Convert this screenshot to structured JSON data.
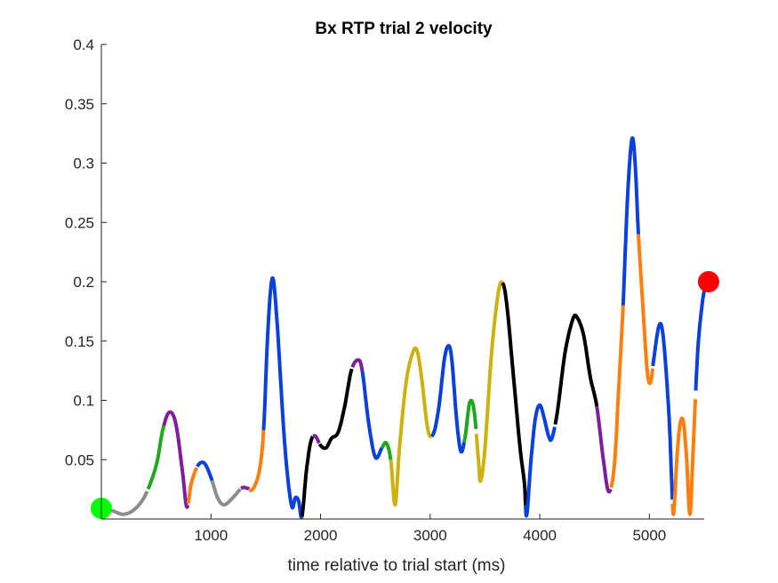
{
  "chart_data": {
    "type": "line",
    "title": "Bx  RTP trial 2 velocity",
    "xlabel": "time relative to trial start (ms)",
    "ylabel": "",
    "xlim": [
      0,
      5500
    ],
    "ylim": [
      0,
      0.4
    ],
    "xticks": [
      1000,
      2000,
      3000,
      4000,
      5000
    ],
    "yticks": [
      0.05,
      0.1,
      0.15,
      0.2,
      0.25,
      0.3,
      0.35,
      0.4
    ],
    "xtick_labels": [
      "1000",
      "2000",
      "3000",
      "4000",
      "5000"
    ],
    "ytick_labels": [
      "0.05",
      "0.1",
      "0.15",
      "0.2",
      "0.25",
      "0.3",
      "0.35",
      "0.4"
    ],
    "grid": false,
    "colors": {
      "gray": "#8c8c8c",
      "green": "#1fa81f",
      "purple": "#7e1e9c",
      "orange": "#ff7f0e",
      "blue": "#0a3fe0",
      "black": "#000000",
      "olive": "#cdb20f",
      "start_marker": "#00ff00",
      "end_marker": "#ff0000"
    },
    "points": [
      [
        0,
        0.009
      ],
      [
        100,
        0.007
      ],
      [
        200,
        0.004
      ],
      [
        300,
        0.008
      ],
      [
        400,
        0.02
      ],
      [
        500,
        0.045
      ],
      [
        560,
        0.075
      ],
      [
        620,
        0.09
      ],
      [
        680,
        0.08
      ],
      [
        740,
        0.04
      ],
      [
        780,
        0.01
      ],
      [
        820,
        0.03
      ],
      [
        880,
        0.045
      ],
      [
        940,
        0.047
      ],
      [
        1000,
        0.035
      ],
      [
        1060,
        0.018
      ],
      [
        1120,
        0.012
      ],
      [
        1200,
        0.018
      ],
      [
        1280,
        0.026
      ],
      [
        1330,
        0.026
      ],
      [
        1380,
        0.025
      ],
      [
        1440,
        0.04
      ],
      [
        1480,
        0.075
      ],
      [
        1520,
        0.16
      ],
      [
        1560,
        0.203
      ],
      [
        1600,
        0.17
      ],
      [
        1660,
        0.08
      ],
      [
        1700,
        0.035
      ],
      [
        1740,
        0.01
      ],
      [
        1770,
        0.018
      ],
      [
        1800,
        0.015
      ],
      [
        1830,
        0.002
      ],
      [
        1870,
        0.04
      ],
      [
        1910,
        0.065
      ],
      [
        1950,
        0.07
      ],
      [
        2000,
        0.062
      ],
      [
        2050,
        0.06
      ],
      [
        2100,
        0.068
      ],
      [
        2160,
        0.073
      ],
      [
        2220,
        0.095
      ],
      [
        2280,
        0.125
      ],
      [
        2340,
        0.134
      ],
      [
        2380,
        0.125
      ],
      [
        2440,
        0.08
      ],
      [
        2500,
        0.052
      ],
      [
        2560,
        0.06
      ],
      [
        2600,
        0.064
      ],
      [
        2640,
        0.05
      ],
      [
        2680,
        0.012
      ],
      [
        2720,
        0.06
      ],
      [
        2780,
        0.115
      ],
      [
        2840,
        0.14
      ],
      [
        2880,
        0.142
      ],
      [
        2920,
        0.12
      ],
      [
        2980,
        0.075
      ],
      [
        3030,
        0.072
      ],
      [
        3080,
        0.095
      ],
      [
        3130,
        0.135
      ],
      [
        3170,
        0.146
      ],
      [
        3200,
        0.132
      ],
      [
        3240,
        0.085
      ],
      [
        3280,
        0.057
      ],
      [
        3320,
        0.07
      ],
      [
        3360,
        0.098
      ],
      [
        3400,
        0.092
      ],
      [
        3440,
        0.05
      ],
      [
        3460,
        0.032
      ],
      [
        3500,
        0.06
      ],
      [
        3560,
        0.14
      ],
      [
        3620,
        0.19
      ],
      [
        3660,
        0.199
      ],
      [
        3700,
        0.18
      ],
      [
        3760,
        0.12
      ],
      [
        3820,
        0.06
      ],
      [
        3860,
        0.03
      ],
      [
        3880,
        0.003
      ],
      [
        3920,
        0.05
      ],
      [
        3960,
        0.085
      ],
      [
        4000,
        0.096
      ],
      [
        4040,
        0.085
      ],
      [
        4080,
        0.07
      ],
      [
        4110,
        0.068
      ],
      [
        4160,
        0.09
      ],
      [
        4230,
        0.14
      ],
      [
        4300,
        0.168
      ],
      [
        4340,
        0.17
      ],
      [
        4400,
        0.155
      ],
      [
        4460,
        0.12
      ],
      [
        4520,
        0.095
      ],
      [
        4580,
        0.05
      ],
      [
        4630,
        0.023
      ],
      [
        4680,
        0.045
      ],
      [
        4720,
        0.11
      ],
      [
        4760,
        0.18
      ],
      [
        4800,
        0.27
      ],
      [
        4840,
        0.32
      ],
      [
        4870,
        0.3
      ],
      [
        4900,
        0.24
      ],
      [
        4940,
        0.18
      ],
      [
        4980,
        0.125
      ],
      [
        5010,
        0.115
      ],
      [
        5040,
        0.135
      ],
      [
        5080,
        0.16
      ],
      [
        5110,
        0.163
      ],
      [
        5140,
        0.14
      ],
      [
        5180,
        0.085
      ],
      [
        5200,
        0.04
      ],
      [
        5220,
        0.004
      ],
      [
        5250,
        0.05
      ],
      [
        5280,
        0.08
      ],
      [
        5310,
        0.082
      ],
      [
        5340,
        0.05
      ],
      [
        5370,
        0.004
      ],
      [
        5400,
        0.06
      ],
      [
        5440,
        0.14
      ],
      [
        5480,
        0.18
      ],
      [
        5510,
        0.196
      ],
      [
        5540,
        0.2
      ]
    ],
    "segments": [
      {
        "color": "gray",
        "x_end": 420
      },
      {
        "color": "green",
        "x_end": 570
      },
      {
        "color": "purple",
        "x_end": 790
      },
      {
        "color": "orange",
        "x_end": 870
      },
      {
        "color": "blue",
        "x_end": 1010
      },
      {
        "color": "gray",
        "x_end": 1270
      },
      {
        "color": "purple",
        "x_end": 1350
      },
      {
        "color": "orange",
        "x_end": 1480
      },
      {
        "color": "blue",
        "x_end": 1830
      },
      {
        "color": "black",
        "x_end": 1930
      },
      {
        "color": "purple",
        "x_end": 1990
      },
      {
        "color": "black",
        "x_end": 2290
      },
      {
        "color": "purple",
        "x_end": 2380
      },
      {
        "color": "blue",
        "x_end": 2560
      },
      {
        "color": "green",
        "x_end": 2640
      },
      {
        "color": "olive",
        "x_end": 3010
      },
      {
        "color": "blue",
        "x_end": 3310
      },
      {
        "color": "green",
        "x_end": 3420
      },
      {
        "color": "olive",
        "x_end": 3660
      },
      {
        "color": "black",
        "x_end": 3870
      },
      {
        "color": "blue",
        "x_end": 4140
      },
      {
        "color": "black",
        "x_end": 4520
      },
      {
        "color": "purple",
        "x_end": 4650
      },
      {
        "color": "orange",
        "x_end": 4760
      },
      {
        "color": "blue",
        "x_end": 4900
      },
      {
        "color": "orange",
        "x_end": 5030
      },
      {
        "color": "blue",
        "x_end": 5210
      },
      {
        "color": "orange",
        "x_end": 5420
      },
      {
        "color": "blue",
        "x_end": 5540
      }
    ],
    "markers": [
      {
        "name": "start",
        "x": 0,
        "y": 0.009,
        "color": "start_marker"
      },
      {
        "name": "end",
        "x": 5540,
        "y": 0.2,
        "color": "end_marker"
      }
    ]
  }
}
